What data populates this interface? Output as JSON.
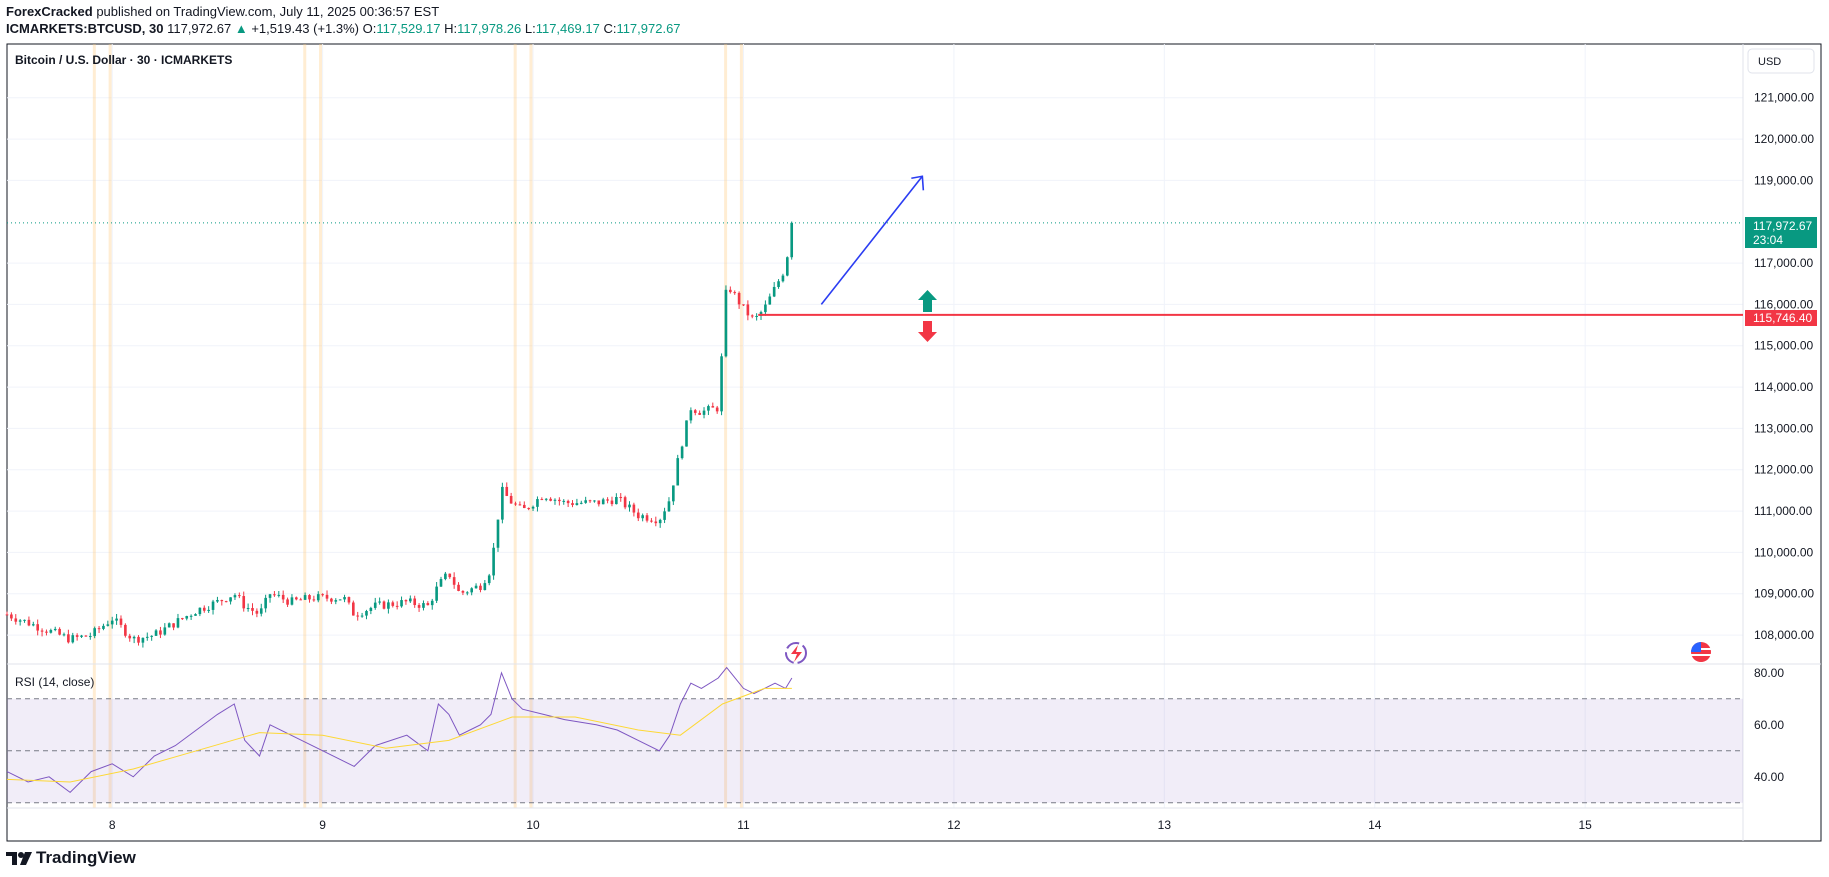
{
  "header": {
    "author": "ForexCracked",
    "published_text": " published on TradingView.com, July 11, 2025 00:36:57 EST",
    "symbol": "ICMARKETS:BTCUSD, 30",
    "last": "117,972.67",
    "change": "+1,519.43 (+1.3%)",
    "o_label": "O:",
    "o_value": "117,529.17",
    "h_label": "H:",
    "h_value": "117,978.26",
    "l_label": "L:",
    "l_value": "117,469.17",
    "c_label": "C:",
    "c_value": "117,972.67"
  },
  "chart": {
    "title": "Bitcoin / U.S. Dollar · 30 · ICMARKETS",
    "currency": "USD",
    "price_label": "117,972.67",
    "countdown": "23:04",
    "level_label": "115,746.40",
    "rsi_title": "RSI (14, close)"
  },
  "colors": {
    "up": "#089981",
    "down": "#f23645",
    "level": "#f23645",
    "arrow": "#2b3df2",
    "rsi": "#7e57c2",
    "rsi_ma": "#fdd835",
    "rsi_band": "#7e57c2"
  },
  "footer": {
    "brand": "TradingView"
  },
  "chart_data": [
    {
      "type": "candlestick",
      "title": "Bitcoin / U.S. Dollar · 30 · ICMARKETS",
      "x_ticks": [
        "8",
        "9",
        "10",
        "11",
        "12",
        "13",
        "14",
        "15"
      ],
      "y_ticks": [
        "121,000.00",
        "120,000.00",
        "119,000.00",
        "117,000.00",
        "116,000.00",
        "115,000.00",
        "114,000.00",
        "113,000.00",
        "112,000.00",
        "111,000.00",
        "110,000.00",
        "109,000.00",
        "108,000.00"
      ],
      "ylim": [
        107300,
        122300
      ],
      "xlim": [
        7.5,
        15.75
      ],
      "last_price": 117972.67,
      "level": 115746.4,
      "close_path": [
        [
          7.5,
          108500
        ],
        [
          7.6,
          108300
        ],
        [
          7.7,
          108100
        ],
        [
          7.8,
          107900
        ],
        [
          7.9,
          108000
        ],
        [
          8.0,
          108400
        ],
        [
          8.1,
          107900
        ],
        [
          8.2,
          108000
        ],
        [
          8.3,
          108300
        ],
        [
          8.4,
          108600
        ],
        [
          8.5,
          108800
        ],
        [
          8.58,
          109000
        ],
        [
          8.63,
          108700
        ],
        [
          8.7,
          108500
        ],
        [
          8.75,
          109000
        ],
        [
          8.85,
          108800
        ],
        [
          8.95,
          108900
        ],
        [
          9.1,
          108900
        ],
        [
          9.15,
          108500
        ],
        [
          9.25,
          108700
        ],
        [
          9.4,
          108800
        ],
        [
          9.5,
          108700
        ],
        [
          9.55,
          109200
        ],
        [
          9.6,
          109500
        ],
        [
          9.65,
          109000
        ],
        [
          9.7,
          109100
        ],
        [
          9.75,
          109200
        ],
        [
          9.8,
          109600
        ],
        [
          9.85,
          111500
        ],
        [
          9.9,
          111200
        ],
        [
          9.95,
          111000
        ],
        [
          10.05,
          111400
        ],
        [
          10.15,
          111200
        ],
        [
          10.3,
          111200
        ],
        [
          10.4,
          111300
        ],
        [
          10.5,
          110900
        ],
        [
          10.6,
          110800
        ],
        [
          10.65,
          111300
        ],
        [
          10.7,
          112500
        ],
        [
          10.75,
          113500
        ],
        [
          10.8,
          113400
        ],
        [
          10.88,
          113500
        ],
        [
          10.92,
          116500
        ],
        [
          11.0,
          115900
        ],
        [
          11.05,
          115600
        ],
        [
          11.1,
          115900
        ],
        [
          11.15,
          116400
        ],
        [
          11.2,
          116900
        ],
        [
          11.23,
          117972.67
        ]
      ],
      "annotations": [
        "up-arrow-to-119100",
        "long-short-marker-115746"
      ]
    },
    {
      "type": "line",
      "title": "RSI (14, close)",
      "y_ticks": [
        "80.00",
        "60.00",
        "40.00"
      ],
      "ylim": [
        28,
        83
      ],
      "bands": [
        70,
        50,
        30
      ],
      "series": [
        {
          "values_x": [
            7.5,
            7.6,
            7.7,
            7.8,
            7.9,
            8.0,
            8.1,
            8.2,
            8.3,
            8.4,
            8.5,
            8.58,
            8.63,
            8.7,
            8.75,
            8.85,
            8.95,
            9.1,
            9.15,
            9.25,
            9.4,
            9.5,
            9.55,
            9.6,
            9.65,
            9.7,
            9.75,
            9.8,
            9.85,
            9.9,
            9.95,
            10.05,
            10.15,
            10.3,
            10.4,
            10.5,
            10.6,
            10.65,
            10.7,
            10.75,
            10.8,
            10.88,
            10.92,
            11.0,
            11.05,
            11.1,
            11.15,
            11.2,
            11.23
          ],
          "values": [
            42,
            38,
            40,
            34,
            42,
            45,
            40,
            48,
            52,
            58,
            64,
            68,
            54,
            48,
            60,
            56,
            52,
            46,
            44,
            52,
            56,
            50,
            68,
            64,
            56,
            58,
            60,
            64,
            80,
            70,
            66,
            64,
            62,
            60,
            58,
            54,
            50,
            56,
            68,
            76,
            74,
            78,
            82,
            74,
            72,
            74,
            76,
            74,
            78
          ]
        },
        {
          "values_x": [
            7.5,
            7.8,
            8.1,
            8.4,
            8.7,
            9.0,
            9.3,
            9.6,
            9.9,
            10.2,
            10.5,
            10.7,
            10.9,
            11.1,
            11.23
          ],
          "values": [
            39,
            38,
            43,
            50,
            57,
            56,
            51,
            54,
            63,
            63,
            58,
            56,
            68,
            74,
            74
          ]
        }
      ]
    }
  ]
}
